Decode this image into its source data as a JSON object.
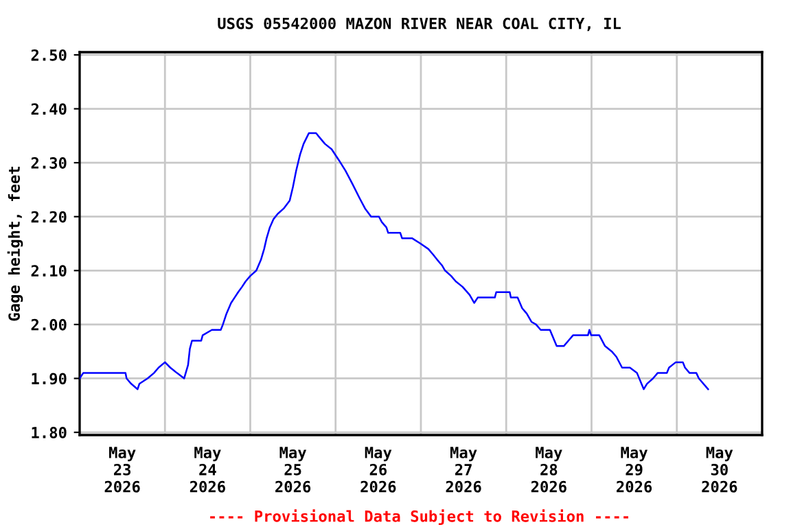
{
  "chart_data": {
    "type": "line",
    "title": "USGS 05542000 MAZON RIVER NEAR COAL CITY, IL",
    "ylabel": "Gage height, feet",
    "annotations": [
      "---- Provisional Data Subject to Revision ----"
    ],
    "x": [
      "2026-05-23T00:00",
      "2026-05-23T01:00",
      "2026-05-23T12:54",
      "2026-05-23T13:12",
      "2026-05-23T14:30",
      "2026-05-23T16:18",
      "2026-05-23T16:48",
      "2026-05-23T19:06",
      "2026-05-23T20:54",
      "2026-05-23T22:12",
      "2026-05-24T00:00",
      "2026-05-24T01:30",
      "2026-05-24T03:24",
      "2026-05-24T05:24",
      "2026-05-24T06:30",
      "2026-05-24T07:00",
      "2026-05-24T07:36",
      "2026-05-24T10:12",
      "2026-05-24T10:36",
      "2026-05-24T13:12",
      "2026-05-24T15:42",
      "2026-05-24T16:18",
      "2026-05-24T17:18",
      "2026-05-24T18:36",
      "2026-05-24T19:36",
      "2026-05-24T20:36",
      "2026-05-24T21:42",
      "2026-05-24T22:42",
      "2026-05-25T00:00",
      "2026-05-25T01:42",
      "2026-05-25T03:00",
      "2026-05-25T03:54",
      "2026-05-25T04:36",
      "2026-05-25T05:30",
      "2026-05-25T06:30",
      "2026-05-25T07:42",
      "2026-05-25T09:24",
      "2026-05-25T11:06",
      "2026-05-25T12:00",
      "2026-05-25T12:54",
      "2026-05-25T14:00",
      "2026-05-25T15:00",
      "2026-05-25T16:30",
      "2026-05-25T18:30",
      "2026-05-25T19:06",
      "2026-05-25T21:00",
      "2026-05-25T22:54",
      "2026-05-26T00:54",
      "2026-05-26T02:48",
      "2026-05-26T04:48",
      "2026-05-26T06:42",
      "2026-05-26T08:18",
      "2026-05-26T10:00",
      "2026-05-26T12:12",
      "2026-05-26T13:00",
      "2026-05-26T14:18",
      "2026-05-26T14:48",
      "2026-05-26T18:12",
      "2026-05-26T18:42",
      "2026-05-26T21:30",
      "2026-05-26T23:54",
      "2026-05-27T02:06",
      "2026-05-27T03:24",
      "2026-05-27T04:36",
      "2026-05-27T05:54",
      "2026-05-27T06:48",
      "2026-05-27T08:30",
      "2026-05-27T09:48",
      "2026-05-27T11:42",
      "2026-05-27T13:42",
      "2026-05-27T15:00",
      "2026-05-27T16:00",
      "2026-05-27T20:48",
      "2026-05-27T21:12",
      "2026-05-28T01:00",
      "2026-05-28T01:18",
      "2026-05-28T03:12",
      "2026-05-28T04:30",
      "2026-05-28T05:48",
      "2026-05-28T07:06",
      "2026-05-28T08:24",
      "2026-05-28T09:42",
      "2026-05-28T12:18",
      "2026-05-28T14:12",
      "2026-05-28T16:12",
      "2026-05-28T17:30",
      "2026-05-28T18:48",
      "2026-05-28T23:00",
      "2026-05-28T23:24",
      "2026-05-28T23:54",
      "2026-05-29T02:12",
      "2026-05-29T03:48",
      "2026-05-29T05:42",
      "2026-05-29T07:00",
      "2026-05-29T08:36",
      "2026-05-29T10:48",
      "2026-05-29T12:48",
      "2026-05-29T14:42",
      "2026-05-29T15:36",
      "2026-05-29T17:18",
      "2026-05-29T18:36",
      "2026-05-29T21:12",
      "2026-05-29T21:48",
      "2026-05-29T23:42",
      "2026-05-30T01:42",
      "2026-05-30T02:18",
      "2026-05-30T03:36",
      "2026-05-30T05:30",
      "2026-05-30T06:12",
      "2026-05-30T08:48"
    ],
    "series": [
      {
        "color": "#0000ff",
        "values": [
          1.9,
          1.91,
          1.91,
          1.9,
          1.89,
          1.88,
          1.89,
          1.9,
          1.91,
          1.92,
          1.93,
          1.92,
          1.91,
          1.9,
          1.925,
          1.955,
          1.97,
          1.97,
          1.98,
          1.99,
          1.99,
          2.0,
          2.02,
          2.04,
          2.05,
          2.06,
          2.07,
          2.08,
          2.09,
          2.1,
          2.12,
          2.14,
          2.16,
          2.18,
          2.195,
          2.205,
          2.215,
          2.23,
          2.255,
          2.285,
          2.315,
          2.335,
          2.355,
          2.355,
          2.35,
          2.335,
          2.325,
          2.305,
          2.285,
          2.26,
          2.235,
          2.215,
          2.2,
          2.2,
          2.19,
          2.18,
          2.17,
          2.17,
          2.16,
          2.16,
          2.15,
          2.14,
          2.13,
          2.12,
          2.11,
          2.1,
          2.09,
          2.08,
          2.07,
          2.055,
          2.04,
          2.05,
          2.05,
          2.06,
          2.06,
          2.05,
          2.05,
          2.03,
          2.02,
          2.005,
          2.0,
          1.99,
          1.99,
          1.96,
          1.96,
          1.97,
          1.98,
          1.98,
          1.99,
          1.98,
          1.98,
          1.96,
          1.95,
          1.94,
          1.92,
          1.92,
          1.91,
          1.88,
          1.89,
          1.9,
          1.91,
          1.91,
          1.92,
          1.93,
          1.93,
          1.92,
          1.91,
          1.91,
          1.9,
          1.88
        ]
      }
    ],
    "xlim": [
      "2026-05-23T00:00",
      "2026-05-31T00:00"
    ],
    "xticks": [
      {
        "value": "2026-05-23T12:00",
        "label": "May\n23\n2026"
      },
      {
        "value": "2026-05-24T12:00",
        "label": "May\n24\n2026"
      },
      {
        "value": "2026-05-25T12:00",
        "label": "May\n25\n2026"
      },
      {
        "value": "2026-05-26T12:00",
        "label": "May\n26\n2026"
      },
      {
        "value": "2026-05-27T12:00",
        "label": "May\n27\n2026"
      },
      {
        "value": "2026-05-28T12:00",
        "label": "May\n28\n2026"
      },
      {
        "value": "2026-05-29T12:00",
        "label": "May\n29\n2026"
      },
      {
        "value": "2026-05-30T12:00",
        "label": "May\n30\n2026"
      },
      {
        "value": "2026-05-24T00:00",
        "label": null
      },
      {
        "value": "2026-05-25T00:00",
        "label": null
      },
      {
        "value": "2026-05-26T00:00",
        "label": null
      },
      {
        "value": "2026-05-27T00:00",
        "label": null
      },
      {
        "value": "2026-05-28T00:00",
        "label": null
      },
      {
        "value": "2026-05-29T00:00",
        "label": null
      },
      {
        "value": "2026-05-30T00:00",
        "label": null
      }
    ],
    "ylim": [
      1.795,
      2.505
    ],
    "yticks": [
      {
        "value": 1.8,
        "label": "1.80"
      },
      {
        "value": 1.9,
        "label": "1.90"
      },
      {
        "value": 2.0,
        "label": "2.00"
      },
      {
        "value": 2.1,
        "label": "2.10"
      },
      {
        "value": 2.2,
        "label": "2.20"
      },
      {
        "value": 2.3,
        "label": "2.30"
      },
      {
        "value": 2.4,
        "label": "2.40"
      },
      {
        "value": 2.5,
        "label": "2.50"
      }
    ],
    "grid": true,
    "legend": false
  }
}
